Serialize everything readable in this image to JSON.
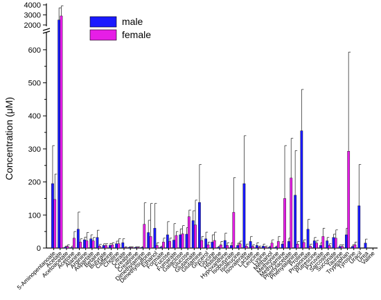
{
  "chart_data": {
    "type": "bar",
    "title": "",
    "xlabel": "",
    "ylabel": "Concentration (μM)",
    "ylim_lower": [
      0,
      650
    ],
    "ylim_upper": [
      2000,
      4000
    ],
    "y_ticks_lower": [
      0,
      100,
      200,
      300,
      400,
      500,
      600
    ],
    "y_ticks_upper": [
      2000,
      3000,
      4000
    ],
    "axis_break": true,
    "legend_position": "top-center",
    "colors": {
      "male": "#1a1aff",
      "female": "#e61ee6"
    },
    "categories": [
      "5-Aminopentanoate",
      "Acetate",
      "Acetoacetate",
      "Acetone",
      "Alanine",
      "Arginine",
      "Aspartate",
      "Betaine",
      "Butyrate",
      "Caffeine",
      "Choline",
      "Citrate",
      "Creatine",
      "Creatinine",
      "Dimethylamine",
      "Dimethylsulfone",
      "Ethanol",
      "Formate",
      "Fucose",
      "Fumarate",
      "Galactose",
      "Glucose",
      "Glutamate",
      "Glutamine",
      "Glycerol",
      "Glycine",
      "Histidine",
      "Hypoxanthine",
      "Isobutyrate",
      "Isoleucine",
      "Isovalerate",
      "Lactate",
      "Leucine",
      "Lysine",
      "Methanol",
      "Methionine",
      "Methylamine",
      "Phenylacetate",
      "Phenylalanine",
      "Proline",
      "Propionate",
      "Putrescine",
      "Pyruvate",
      "Sarcosine",
      "Succinate",
      "Taurine",
      "Tryptophan",
      "Tyrosine",
      "Uracil",
      "Urea",
      "Valine"
    ],
    "series": [
      {
        "name": "male",
        "values": [
          195,
          2500,
          3,
          2,
          57,
          25,
          28,
          32,
          8,
          8,
          13,
          16,
          2,
          2,
          2,
          47,
          60,
          3,
          40,
          24,
          40,
          42,
          83,
          138,
          28,
          18,
          3,
          23,
          8,
          8,
          195,
          20,
          8,
          6,
          3,
          3,
          12,
          20,
          160,
          355,
          57,
          22,
          8,
          22,
          32,
          5,
          40,
          5,
          128,
          15,
          0
        ],
        "errors": [
          115,
          1200,
          3,
          4,
          52,
          8,
          12,
          22,
          5,
          6,
          8,
          12,
          2,
          2,
          2,
          37,
          75,
          3,
          40,
          50,
          18,
          20,
          30,
          115,
          20,
          22,
          3,
          22,
          8,
          7,
          145,
          15,
          8,
          6,
          3,
          3,
          8,
          10,
          135,
          125,
          30,
          10,
          8,
          10,
          10,
          5,
          20,
          5,
          125,
          12,
          0
        ]
      },
      {
        "name": "female",
        "values": [
          147,
          2900,
          5,
          30,
          18,
          22,
          22,
          6,
          8,
          10,
          13,
          2,
          2,
          2,
          72,
          35,
          8,
          18,
          20,
          38,
          43,
          95,
          70,
          23,
          10,
          23,
          10,
          8,
          108,
          13,
          6,
          5,
          3,
          3,
          15,
          20,
          150,
          212,
          12,
          17,
          6,
          15,
          35,
          8,
          30,
          5,
          293,
          10,
          0,
          0,
          0
        ],
        "errors": [
          77,
          1000,
          5,
          20,
          10,
          25,
          10,
          5,
          5,
          6,
          15,
          2,
          2,
          2,
          65,
          100,
          8,
          12,
          10,
          12,
          25,
          20,
          75,
          12,
          8,
          25,
          10,
          8,
          105,
          8,
          6,
          5,
          3,
          3,
          10,
          15,
          160,
          120,
          8,
          8,
          6,
          8,
          25,
          5,
          25,
          5,
          300,
          8,
          0,
          0,
          0
        ]
      }
    ]
  },
  "legend": {
    "male": "male",
    "female": "female"
  }
}
